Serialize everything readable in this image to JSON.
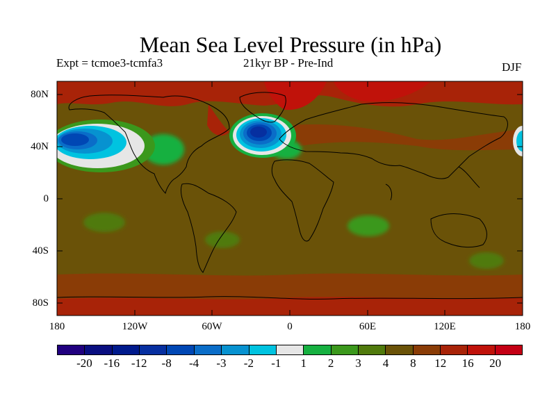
{
  "title": "Mean Sea Level Pressure (in hPa)",
  "subtitle_left": "Expt = tcmoe3-tcmfa3",
  "subtitle_center": "21kyr BP - Pre-Ind",
  "subtitle_right": "DJF",
  "map": {
    "projection": "cylindrical equidistant",
    "lon_range": [
      -180,
      180
    ],
    "lat_range": [
      -90,
      90
    ],
    "y_ticks": [
      "80N",
      "40N",
      "0",
      "40S",
      "80S"
    ],
    "x_ticks": [
      "180",
      "120W",
      "60W",
      "0",
      "60E",
      "120E",
      "180"
    ],
    "background_color": "#6a5208",
    "coastline_color": "#000000"
  },
  "colorbar": {
    "labels": [
      "-20",
      "-16",
      "-12",
      "-8",
      "-4",
      "-3",
      "-2",
      "-1",
      "1",
      "2",
      "3",
      "4",
      "8",
      "12",
      "16",
      "20"
    ],
    "colors": [
      "#20007f",
      "#090e80",
      "#001a8c",
      "#062fa0",
      "#0047b4",
      "#0a6dc8",
      "#0792d0",
      "#00c3e0",
      "#e6e6e6",
      "#16b040",
      "#3b981c",
      "#507a0c",
      "#6a5208",
      "#8a3c06",
      "#a82308",
      "#c0120a",
      "#c40014"
    ]
  }
}
